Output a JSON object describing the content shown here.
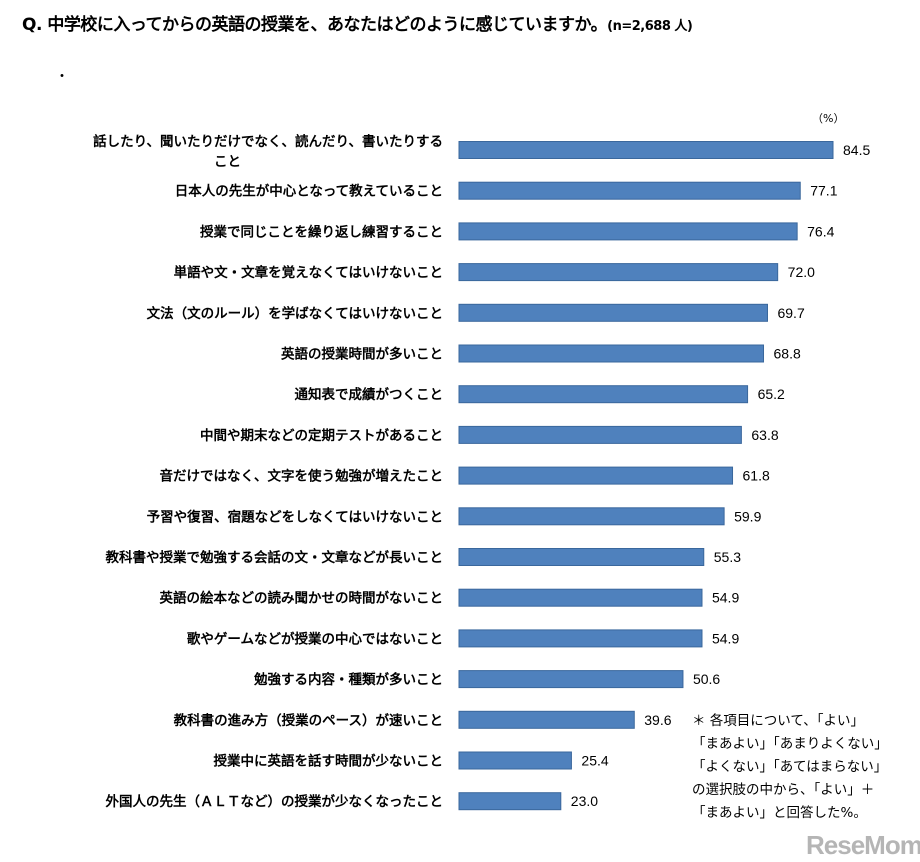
{
  "chart_data": {
    "type": "bar",
    "orientation": "horizontal",
    "title": "Q. 中学校に入ってからの英語の授業を、あなたはどのように感じていますか。",
    "sample": "(n=2,688 人)",
    "unit": "（%）",
    "xlim": [
      0,
      100
    ],
    "grid": false,
    "bar_color": "#4f81bd",
    "categories": [
      "話したり、聞いたりだけでなく、読んだり、書いたりすること",
      "日本人の先生が中心となって教えていること",
      "授業で同じことを繰り返し練習すること",
      "単語や文・文章を覚えなくてはいけないこと",
      "文法（文のルール）を学ばなくてはいけないこと",
      "英語の授業時間が多いこと",
      "通知表で成績がつくこと",
      "中間や期末などの定期テストがあること",
      "音だけではなく、文字を使う勉強が増えたこと",
      "予習や復習、宿題などをしなくてはいけないこと",
      "教科書や授業で勉強する会話の文・文章などが長いこと",
      "英語の絵本などの読み聞かせの時間がないこと",
      "歌やゲームなどが授業の中心ではないこと",
      "勉強する内容・種類が多いこと",
      "教科書の進み方（授業のペース）が速いこと",
      "授業中に英語を話す時間が少ないこと",
      "外国人の先生（ＡＬＴなど）の授業が少なくなったこと"
    ],
    "values": [
      84.5,
      77.1,
      76.4,
      72.0,
      69.7,
      68.8,
      65.2,
      63.8,
      61.8,
      59.9,
      55.3,
      54.9,
      54.9,
      50.6,
      39.6,
      25.4,
      23.0
    ]
  },
  "header": {
    "q": "Q.",
    "question": "中学校に入ってからの英語の授業を、あなたはどのように感じていますか。",
    "sample": "(n=2,688 人)",
    "dot": "・"
  },
  "label_lines": {
    "0": [
      "話したり、聞いたりだけでなく、読んだり、書いたりする",
      "こと"
    ]
  },
  "note": [
    "＊ 各項目について、「よい」",
    "「まあよい」「あまりよくない」",
    "「よくない」「あてはまらない」",
    "の選択肢の中から、「よい」＋",
    "「まあよい」と回答した%。"
  ],
  "watermark": "ReseMom"
}
